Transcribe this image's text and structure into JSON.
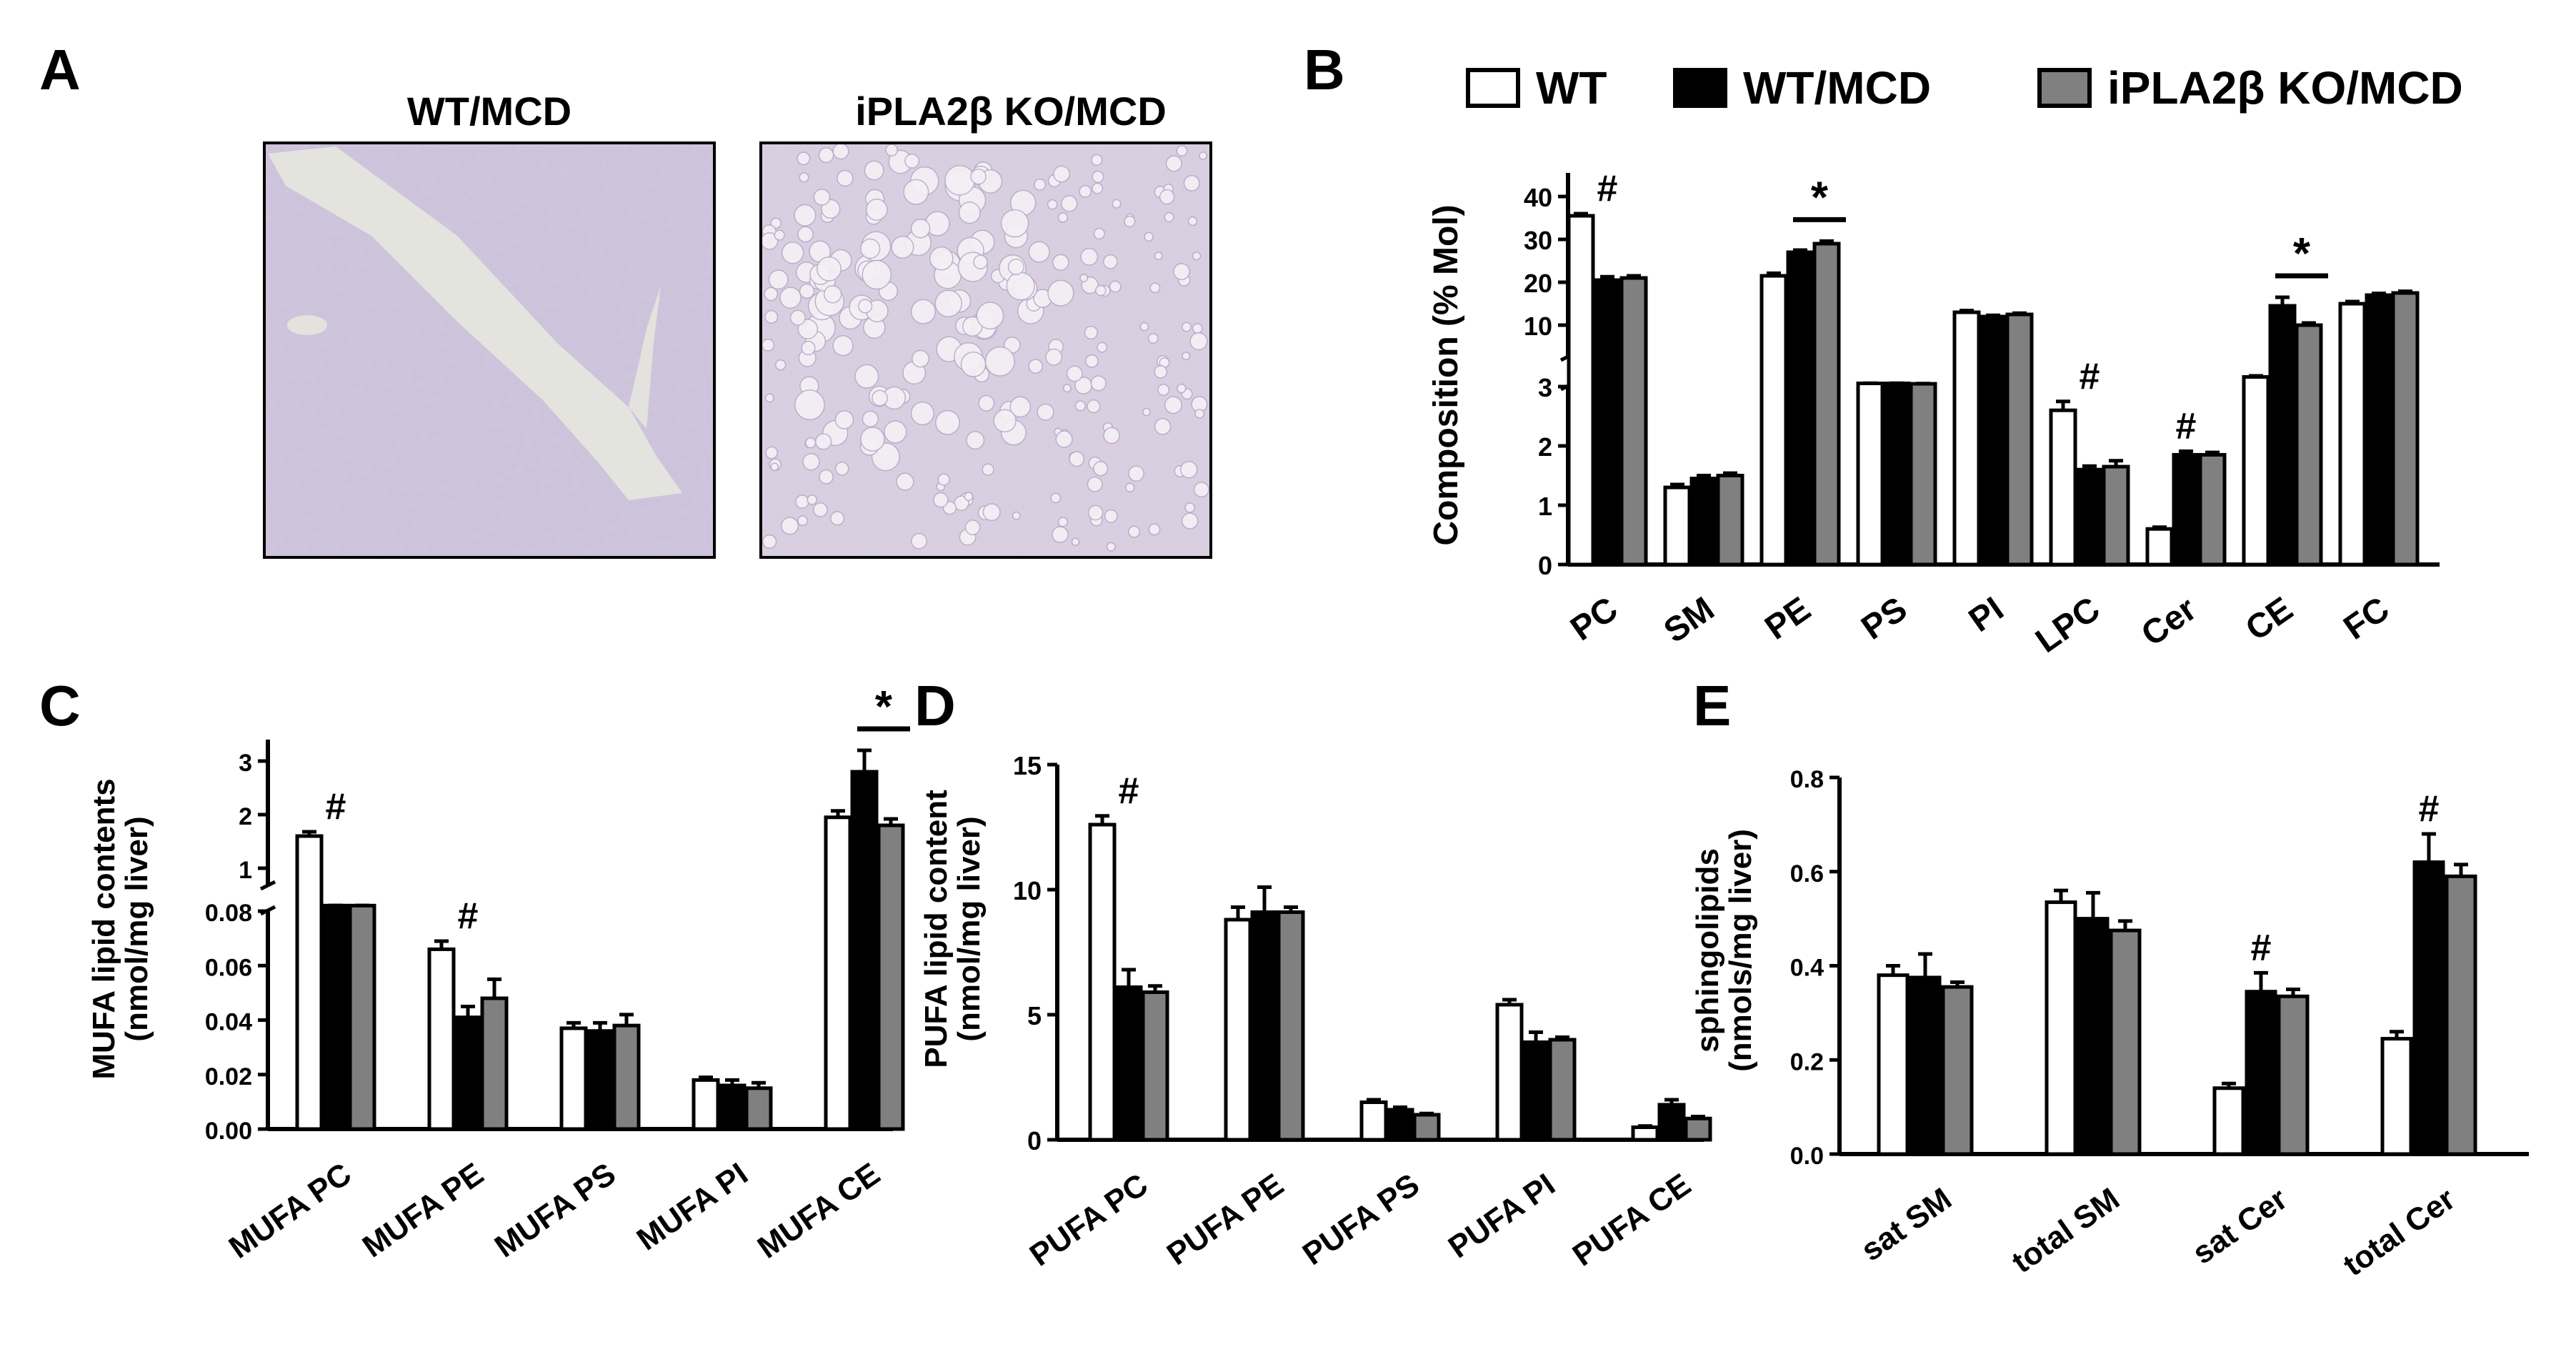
{
  "colors": {
    "wt": "#ffffff",
    "wtmcd": "#000000",
    "ko": "#808080",
    "axis": "#000000"
  },
  "legend": [
    {
      "label": "WT",
      "color": "#ffffff"
    },
    {
      "label": "WT/MCD",
      "color": "#000000"
    },
    {
      "label": "iPLA2β KO/MCD",
      "color": "#808080"
    }
  ],
  "panels": {
    "a": "A",
    "b": "B",
    "c": "C",
    "d": "D",
    "e": "E"
  },
  "histology": {
    "left_title": "WT/MCD",
    "right_title": "iPLA2β KO/MCD"
  },
  "chart_data": [
    {
      "id": "B",
      "type": "bar",
      "ylabel": "Composition (% Mol)",
      "yscale": "broken-axis: 0-3 linear, 10-40 compressed",
      "yticks": [
        "0",
        "1",
        "2",
        "3",
        "10",
        "20",
        "30",
        "40"
      ],
      "categories": [
        "PC",
        "SM",
        "PE",
        "PS",
        "PI",
        "LPC",
        "Cer",
        "CE",
        "FC"
      ],
      "series": [
        {
          "name": "WT",
          "values": [
            35.5,
            1.3,
            21.5,
            4.5,
            13.0,
            2.6,
            0.6,
            7.5,
            15.0
          ],
          "errors": [
            0.5,
            0.05,
            0.6,
            0.1,
            0.4,
            0.15,
            0.03,
            0.5,
            0.5
          ]
        },
        {
          "name": "WT/MCD",
          "values": [
            20.5,
            1.45,
            27.0,
            4.5,
            12.0,
            1.6,
            1.85,
            14.5,
            17.0
          ],
          "errors": [
            0.8,
            0.05,
            0.5,
            0.1,
            0.3,
            0.06,
            0.06,
            2.0,
            0.4
          ]
        },
        {
          "name": "iPLA2β KO/MCD",
          "values": [
            21.0,
            1.5,
            29.0,
            4.3,
            12.5,
            1.65,
            1.85,
            10.0,
            17.5
          ],
          "errors": [
            0.5,
            0.04,
            0.6,
            0.1,
            0.3,
            0.1,
            0.04,
            0.5,
            0.4
          ]
        }
      ],
      "annotations": [
        {
          "text": "#",
          "category": "PC"
        },
        {
          "text": "*",
          "category": "PE"
        },
        {
          "text": "#",
          "category": "LPC"
        },
        {
          "text": "#",
          "category": "Cer"
        },
        {
          "text": "*",
          "category": "CE"
        }
      ]
    },
    {
      "id": "C",
      "type": "bar",
      "ylabel": "MUFA lipid contents",
      "ylabel2": "(nmol/mg liver)",
      "yscale": "broken-axis: 0-0.08 linear, 1-3 compressed",
      "yticks": [
        "0.00",
        "0.02",
        "0.04",
        "0.06",
        "0.08",
        "1",
        "2",
        "3"
      ],
      "categories": [
        "MUFA PC",
        "MUFA PE",
        "MUFA PS",
        "MUFA PI",
        "MUFA CE"
      ],
      "series": [
        {
          "name": "WT",
          "values": [
            1.6,
            0.066,
            0.037,
            0.018,
            1.95
          ],
          "errors": [
            0.08,
            0.003,
            0.002,
            0.001,
            0.12
          ]
        },
        {
          "name": "WT/MCD",
          "values": [
            0.85,
            0.041,
            0.036,
            0.016,
            2.8
          ],
          "errors": [
            0.02,
            0.004,
            0.003,
            0.002,
            0.4
          ]
        },
        {
          "name": "iPLA2β KO/MCD",
          "values": [
            0.85,
            0.048,
            0.038,
            0.015,
            1.8
          ],
          "errors": [
            0.02,
            0.007,
            0.004,
            0.002,
            0.12
          ]
        }
      ],
      "annotations": [
        {
          "text": "#",
          "category": "MUFA PC"
        },
        {
          "text": "#",
          "category": "MUFA PE"
        },
        {
          "text": "*",
          "category": "MUFA CE"
        }
      ]
    },
    {
      "id": "D",
      "type": "bar",
      "ylabel": "PUFA lipid content",
      "ylabel2": "(nmol/mg liver)",
      "ylim": [
        0,
        15
      ],
      "yticks": [
        "0",
        "5",
        "10",
        "15"
      ],
      "categories": [
        "PUFA PC",
        "PUFA PE",
        "PUFA PS",
        "PUFA PI",
        "PUFA CE"
      ],
      "series": [
        {
          "name": "WT",
          "values": [
            12.6,
            8.8,
            1.5,
            5.4,
            0.5
          ],
          "errors": [
            0.35,
            0.5,
            0.1,
            0.2,
            0.05
          ]
        },
        {
          "name": "WT/MCD",
          "values": [
            6.1,
            9.1,
            1.2,
            3.9,
            1.4
          ],
          "errors": [
            0.7,
            1.0,
            0.1,
            0.4,
            0.2
          ]
        },
        {
          "name": "iPLA2β KO/MCD",
          "values": [
            5.9,
            9.1,
            1.0,
            4.0,
            0.85
          ],
          "errors": [
            0.25,
            0.2,
            0.05,
            0.1,
            0.08
          ]
        }
      ],
      "annotations": [
        {
          "text": "#",
          "category": "PUFA PC"
        }
      ]
    },
    {
      "id": "E",
      "type": "bar",
      "ylabel": "sphingolipids",
      "ylabel2": "(nmols/mg liver)",
      "ylim": [
        0,
        0.8
      ],
      "yticks": [
        "0.0",
        "0.2",
        "0.4",
        "0.6",
        "0.8"
      ],
      "categories": [
        "sat SM",
        "total SM",
        "sat Cer",
        "total Cer"
      ],
      "series": [
        {
          "name": "WT",
          "values": [
            0.38,
            0.535,
            0.14,
            0.245
          ],
          "errors": [
            0.02,
            0.025,
            0.01,
            0.015
          ]
        },
        {
          "name": "WT/MCD",
          "values": [
            0.375,
            0.5,
            0.345,
            0.62
          ],
          "errors": [
            0.05,
            0.055,
            0.04,
            0.06
          ]
        },
        {
          "name": "iPLA2β KO/MCD",
          "values": [
            0.355,
            0.475,
            0.335,
            0.59
          ],
          "errors": [
            0.01,
            0.02,
            0.015,
            0.025
          ]
        }
      ],
      "annotations": [
        {
          "text": "#",
          "category": "sat Cer"
        },
        {
          "text": "#",
          "category": "total Cer"
        }
      ]
    }
  ]
}
